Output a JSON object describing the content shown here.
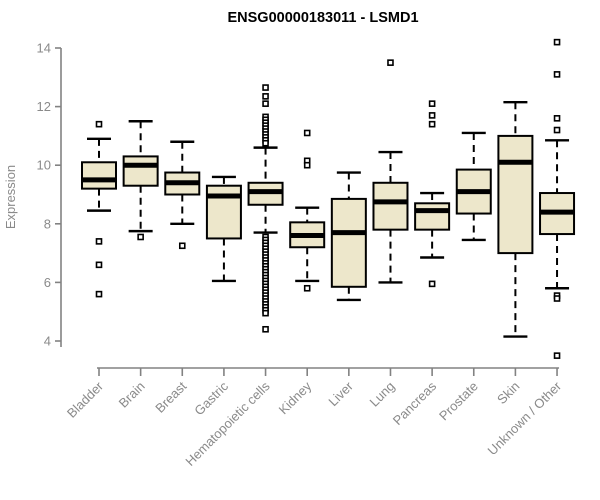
{
  "chart_data": {
    "type": "boxplot",
    "title": "ENSG00000183011 - LSMD1",
    "ylabel": "Expression",
    "xlabel": "",
    "ylim": [
      4,
      14
    ],
    "yticks": [
      4,
      6,
      8,
      10,
      12,
      14
    ],
    "grid": false,
    "legend": "none",
    "categories": [
      "Bladder",
      "Brain",
      "Breast",
      "Gastric",
      "Hematopoietic cells",
      "Kidney",
      "Liver",
      "Lung",
      "Pancreas",
      "Prostate",
      "Skin",
      "Unknown / Other"
    ],
    "boxes": [
      {
        "category": "Bladder",
        "low": 8.45,
        "q1": 9.2,
        "median": 9.5,
        "q3": 10.1,
        "high": 10.9,
        "outliers": [
          11.4,
          7.4,
          6.6,
          5.6
        ]
      },
      {
        "category": "Brain",
        "low": 7.75,
        "q1": 9.3,
        "median": 10.0,
        "q3": 10.3,
        "high": 11.5,
        "outliers": [
          7.55
        ]
      },
      {
        "category": "Breast",
        "low": 8.0,
        "q1": 9.0,
        "median": 9.4,
        "q3": 9.75,
        "high": 10.8,
        "outliers": [
          7.25
        ]
      },
      {
        "category": "Gastric",
        "low": 6.05,
        "q1": 7.5,
        "median": 8.95,
        "q3": 9.3,
        "high": 9.6,
        "outliers": []
      },
      {
        "category": "Hematopoietic cells",
        "low": 7.7,
        "q1": 8.65,
        "median": 9.1,
        "q3": 9.4,
        "high": 10.6,
        "outliers": [
          12.65,
          12.35,
          12.1,
          11.65,
          11.55,
          11.45,
          11.35,
          11.25,
          11.15,
          11.05,
          10.95,
          10.85,
          10.75,
          7.55,
          7.45,
          7.35,
          7.25,
          7.15,
          7.05,
          6.95,
          6.85,
          6.75,
          6.65,
          6.55,
          6.45,
          6.35,
          6.25,
          6.15,
          6.05,
          5.95,
          5.85,
          5.75,
          5.65,
          5.55,
          5.45,
          5.35,
          5.25,
          5.15,
          5.05,
          4.95,
          4.4
        ]
      },
      {
        "category": "Kidney",
        "low": 6.05,
        "q1": 7.2,
        "median": 7.6,
        "q3": 8.05,
        "high": 8.55,
        "outliers": [
          11.1,
          10.15,
          10.0,
          5.8
        ]
      },
      {
        "category": "Liver",
        "low": 5.4,
        "q1": 5.85,
        "median": 7.7,
        "q3": 8.85,
        "high": 9.75,
        "outliers": []
      },
      {
        "category": "Lung",
        "low": 6.0,
        "q1": 7.8,
        "median": 8.75,
        "q3": 9.4,
        "high": 10.45,
        "outliers": [
          13.5
        ]
      },
      {
        "category": "Pancreas",
        "low": 6.85,
        "q1": 7.8,
        "median": 8.45,
        "q3": 8.7,
        "high": 9.05,
        "outliers": [
          12.1,
          11.7,
          11.4,
          5.95
        ]
      },
      {
        "category": "Prostate",
        "low": 7.45,
        "q1": 8.35,
        "median": 9.1,
        "q3": 9.85,
        "high": 11.1,
        "outliers": []
      },
      {
        "category": "Skin",
        "low": 4.15,
        "q1": 7.0,
        "median": 10.1,
        "q3": 11.0,
        "high": 12.15,
        "outliers": []
      },
      {
        "category": "Unknown / Other",
        "low": 5.8,
        "q1": 7.65,
        "median": 8.4,
        "q3": 9.05,
        "high": 10.85,
        "outliers": [
          14.2,
          13.1,
          11.6,
          11.2,
          5.55,
          5.45,
          3.5
        ]
      }
    ],
    "colors": {
      "box_fill": "#EDE7CB",
      "box_stroke": "#000000",
      "median": "#000000",
      "whisker": "#000000",
      "outlier_stroke": "#000000",
      "axis_line": "#828282",
      "tick_label": "#8a8a8a",
      "title": "#000000",
      "background": "#ffffff"
    }
  }
}
